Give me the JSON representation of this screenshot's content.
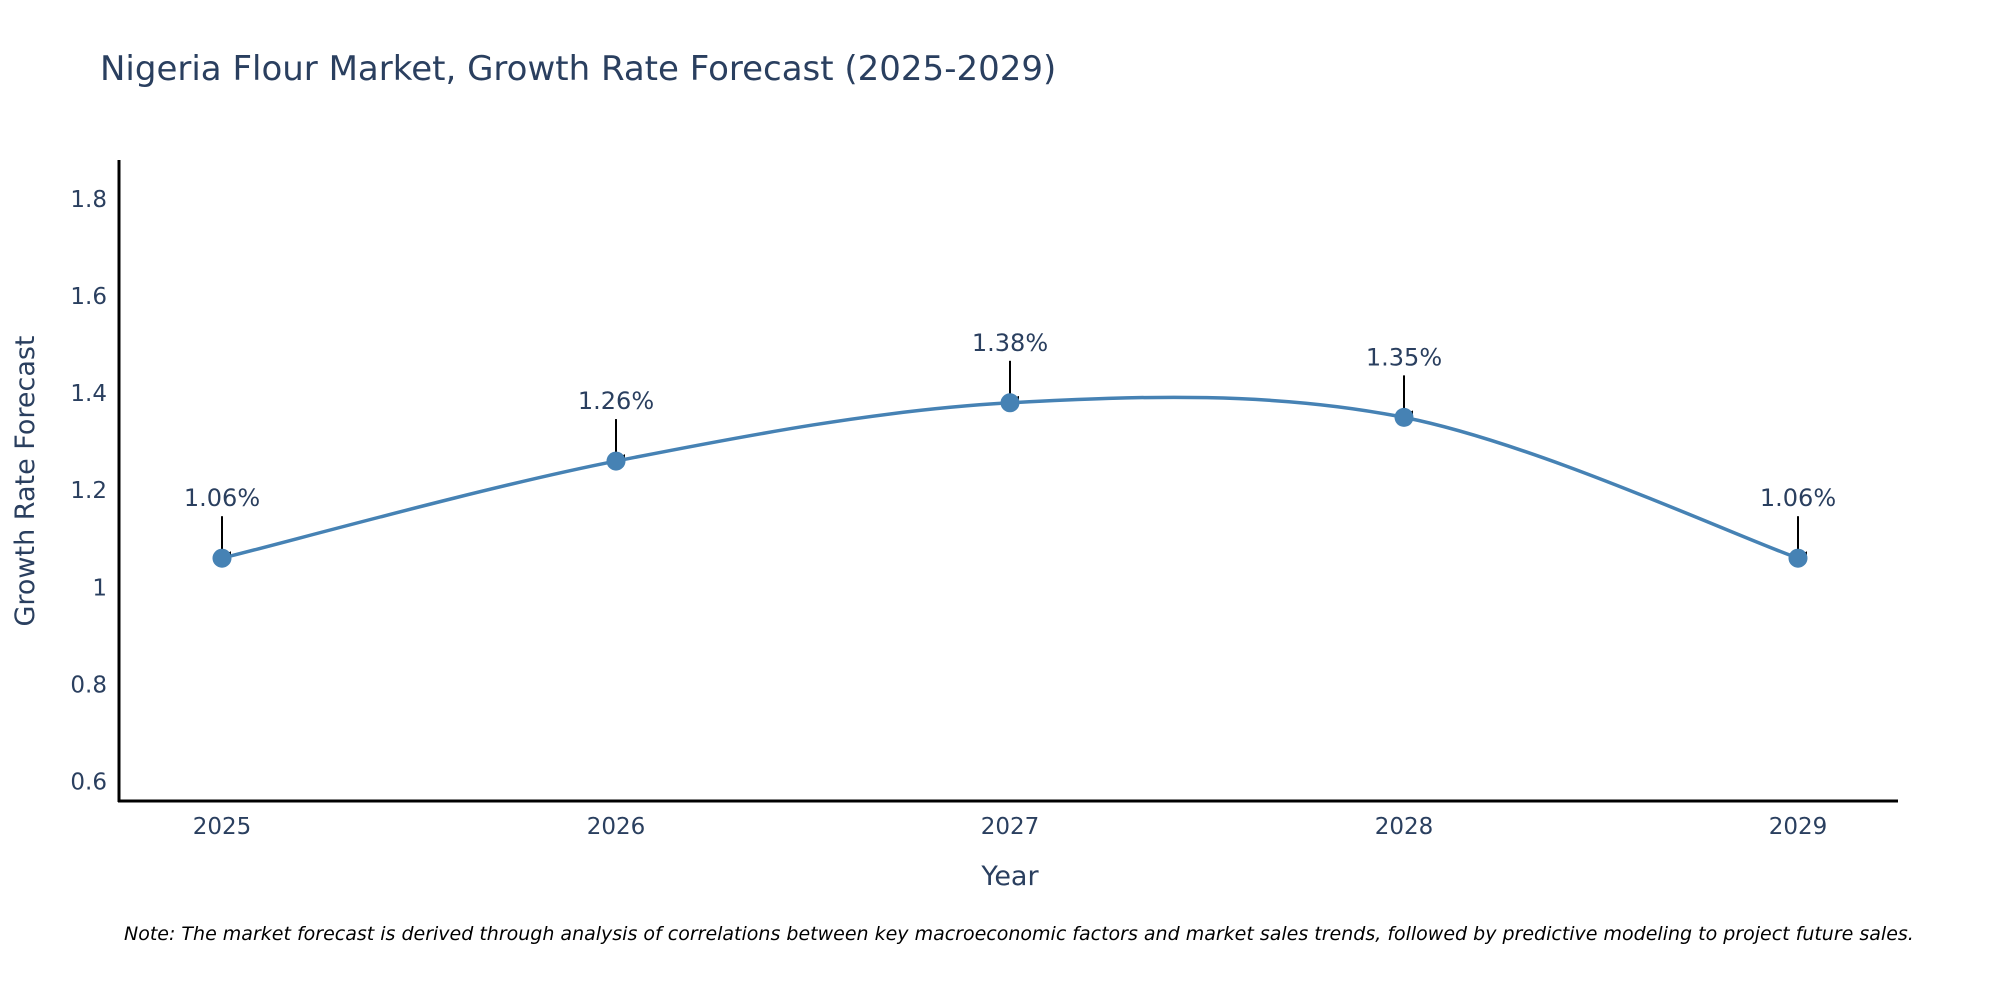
{
  "chart_data": {
    "type": "line",
    "title": "Nigeria Flour Market, Growth Rate Forecast (2025-2029)",
    "xlabel": "Year",
    "ylabel": "Growth Rate Forecast",
    "categories": [
      "2025",
      "2026",
      "2027",
      "2028",
      "2029"
    ],
    "series": [
      {
        "name": "Growth Rate Forecast",
        "values": [
          1.06,
          1.26,
          1.38,
          1.35,
          1.06
        ],
        "labels": [
          "1.06%",
          "1.26%",
          "1.38%",
          "1.35%",
          "1.06%"
        ]
      }
    ],
    "ylim": [
      0.56,
      1.88
    ],
    "yticks": [
      0.6,
      0.8,
      1,
      1.2,
      1.4,
      1.6,
      1.8
    ],
    "ytick_labels": [
      "0.6",
      "0.8",
      "1",
      "1.2",
      "1.4",
      "1.6",
      "1.8"
    ],
    "grid": false,
    "line_color": "#4682B4",
    "marker_color": "#4682B4",
    "annotation_color": "#000000"
  },
  "note": "Note: The market forecast is derived through analysis of correlations between key macroeconomic factors and market sales trends, followed by predictive modeling to project future sales."
}
